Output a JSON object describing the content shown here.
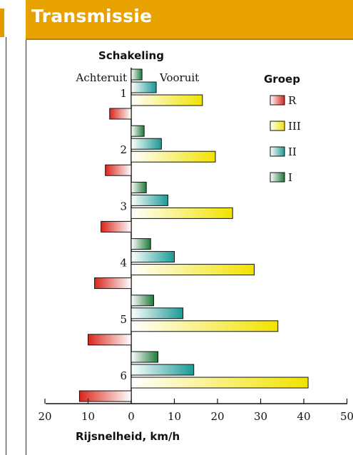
{
  "header": {
    "title": "Transmissie"
  },
  "chart_data": {
    "type": "bar",
    "orientation": "horizontal",
    "title": "Schakeling",
    "xlabel": "Rijsnelheid, km/h",
    "left_label": "Achteruit",
    "right_label": "Vooruit",
    "legend_title": "Groep",
    "xlim": [
      -20,
      50
    ],
    "xticks": [
      {
        "value": -20,
        "label": "20"
      },
      {
        "value": -10,
        "label": "10"
      },
      {
        "value": 0,
        "label": "0"
      },
      {
        "value": 10,
        "label": "10"
      },
      {
        "value": 20,
        "label": "20"
      },
      {
        "value": 30,
        "label": "30"
      },
      {
        "value": 40,
        "label": "40"
      },
      {
        "value": 50,
        "label": "50"
      }
    ],
    "categories": [
      "1",
      "2",
      "3",
      "4",
      "5",
      "6"
    ],
    "series": [
      {
        "name": "I",
        "color": "#1e7a3a",
        "values": [
          2.5,
          3.0,
          3.5,
          4.5,
          5.2,
          6.2
        ]
      },
      {
        "name": "II",
        "color": "#1b9a95",
        "values": [
          5.8,
          7.0,
          8.5,
          10.0,
          12.0,
          14.5
        ]
      },
      {
        "name": "III",
        "color": "#f2e200",
        "values": [
          16.5,
          19.5,
          23.5,
          28.5,
          34.0,
          41.0
        ]
      },
      {
        "name": "R",
        "color": "#d9261c",
        "values": [
          -5.0,
          -6.0,
          -7.0,
          -8.5,
          -10.0,
          -12.0
        ]
      }
    ],
    "legend_order": [
      "R",
      "III",
      "II",
      "I"
    ],
    "grid": false
  }
}
